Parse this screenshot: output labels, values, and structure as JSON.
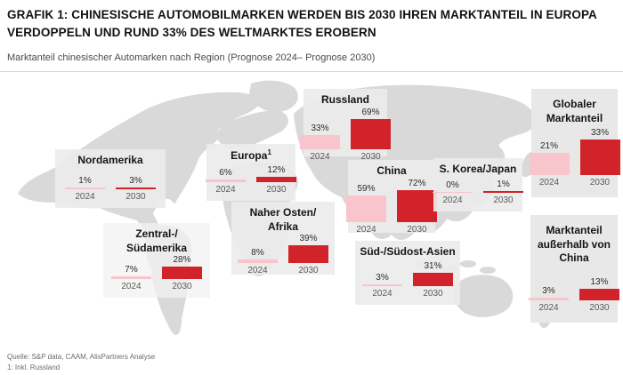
{
  "chart_data": {
    "type": "bar",
    "title": "GRAFIK 1: CHINESISCHE AUTOMOBILMARKEN WERDEN BIS 2030 IHREN MARKTANTEIL IN EUROPA VERDOPPELN UND RUND 33% DES WELTMARKTES EROBERN",
    "subtitle": "Marktanteil chinesischer Automarken nach Region (Prognose 2024– Prognose 2030)",
    "unit": "%",
    "categories": [
      "2024",
      "2030"
    ],
    "colors": {
      "y2024": "#F7C5CB",
      "y2030": "#D2232A"
    },
    "legend_position": "none",
    "grid": false,
    "regions": [
      {
        "name": "Nordamerika",
        "labels": [
          "1%",
          "3%"
        ],
        "values": [
          1,
          3
        ]
      },
      {
        "name": "Europa",
        "sup": "1",
        "labels": [
          "6%",
          "12%"
        ],
        "values": [
          6,
          12
        ]
      },
      {
        "name": "Russland",
        "labels": [
          "33%",
          "69%"
        ],
        "values": [
          33,
          69
        ]
      },
      {
        "name": "Naher Osten/\nAfrika",
        "labels": [
          "8%",
          "39%"
        ],
        "values": [
          8,
          39
        ]
      },
      {
        "name": "China",
        "labels": [
          "59%",
          "72%"
        ],
        "values": [
          59,
          72
        ]
      },
      {
        "name": "S. Korea/Japan",
        "labels": [
          "0%",
          "1%"
        ],
        "values": [
          0,
          1
        ]
      },
      {
        "name": "Süd-/Südost-Asien",
        "labels": [
          "3%",
          "31%"
        ],
        "values": [
          3,
          31
        ]
      },
      {
        "name": "Zentral-/\nSüdamerika",
        "labels": [
          "7%",
          "28%"
        ],
        "values": [
          7,
          28
        ]
      },
      {
        "name": "Globaler\nMarktanteil",
        "labels": [
          "21%",
          "33%"
        ],
        "values": [
          21,
          33
        ]
      },
      {
        "name": "Marktanteil\naußerhalb von\nChina",
        "labels": [
          "3%",
          "13%"
        ],
        "values": [
          3,
          13
        ]
      }
    ]
  },
  "footer": {
    "source": "Quelle: S&P data, CAAM, AlixPartners Analyse",
    "footnote": "1: Inkl. Russland"
  }
}
